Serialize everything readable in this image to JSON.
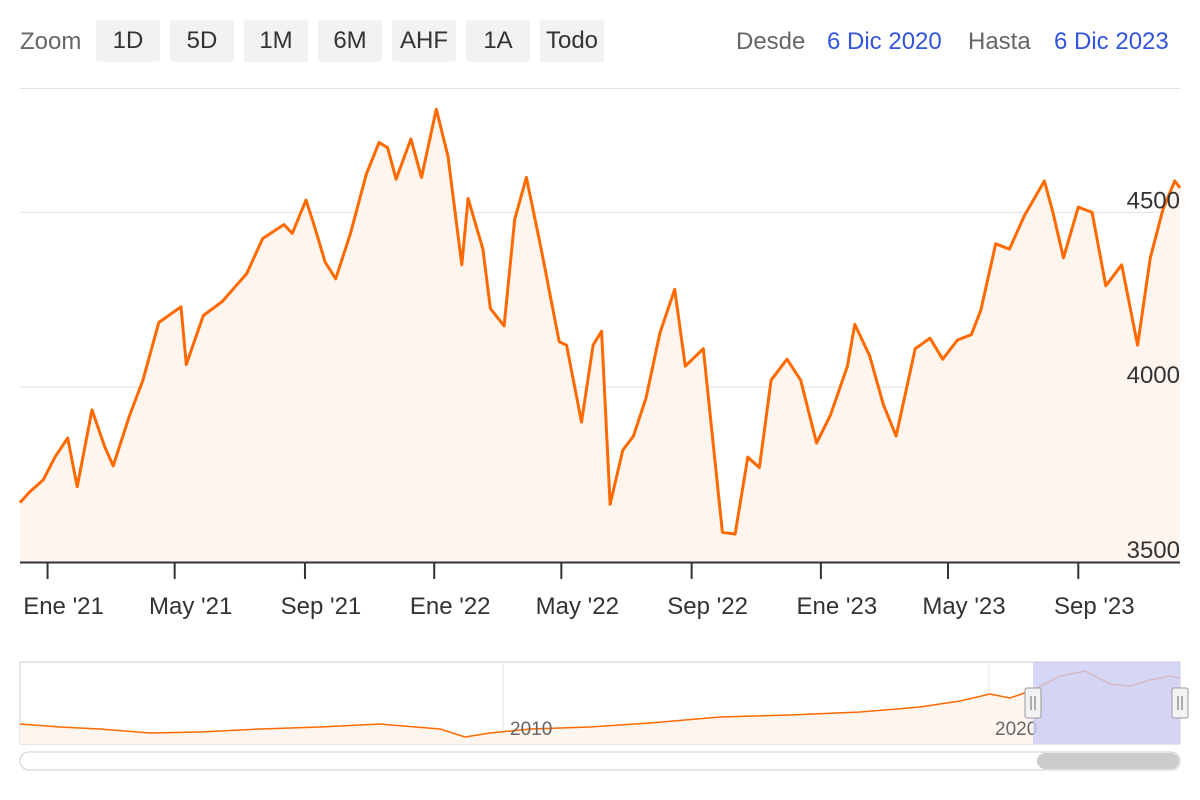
{
  "toolbar": {
    "zoom_label": "Zoom",
    "buttons": [
      "1D",
      "5D",
      "1M",
      "6M",
      "AHF",
      "1A",
      "Todo"
    ],
    "from_label": "Desde",
    "from_value": "6 Dic 2020",
    "to_label": "Hasta",
    "to_value": "6 Dic 2023"
  },
  "colors": {
    "series": "#ff6a00",
    "area_fill": "#fff5ef",
    "grid": "#e0e0e0",
    "date_link": "#3355dd",
    "navigator_mask": "#ccccf5"
  },
  "chart_data": {
    "type": "line",
    "title": "",
    "xlabel": "",
    "ylabel": "",
    "x_range": [
      "2020-12-06",
      "2023-12-06"
    ],
    "ylim": [
      3500,
      4850
    ],
    "y_ticks": [
      3500,
      4000,
      4500
    ],
    "y_tick_labels": [
      "3500",
      "4000",
      "4500"
    ],
    "x_tick_labels": [
      "Ene '21",
      "May '21",
      "Sep '21",
      "Ene '22",
      "May '22",
      "Sep '22",
      "Ene '23",
      "May '23",
      "Sep '23"
    ],
    "x_tick_dates": [
      "2021-01-01",
      "2021-05-01",
      "2021-09-01",
      "2022-01-01",
      "2022-05-01",
      "2022-09-01",
      "2023-01-01",
      "2023-05-01",
      "2023-09-01"
    ],
    "grid": true,
    "legend": "none",
    "series": [
      {
        "x": [
          "2020-12-06",
          "2020-12-15",
          "2020-12-28",
          "2021-01-08",
          "2021-01-20",
          "2021-01-29",
          "2021-02-12",
          "2021-02-24",
          "2021-03-04",
          "2021-03-19",
          "2021-04-01",
          "2021-04-16",
          "2021-05-07",
          "2021-05-12",
          "2021-05-28",
          "2021-06-15",
          "2021-06-25",
          "2021-07-08",
          "2021-07-23",
          "2021-08-12",
          "2021-08-20",
          "2021-09-02",
          "2021-09-10",
          "2021-09-20",
          "2021-09-30",
          "2021-10-14",
          "2021-10-29",
          "2021-11-10",
          "2021-11-18",
          "2021-11-26",
          "2021-12-10",
          "2021-12-20",
          "2022-01-03",
          "2022-01-14",
          "2022-01-27",
          "2022-02-02",
          "2022-02-16",
          "2022-02-23",
          "2022-03-08",
          "2022-03-18",
          "2022-03-29",
          "2022-04-12",
          "2022-04-29",
          "2022-05-06",
          "2022-05-20",
          "2022-05-31",
          "2022-06-08",
          "2022-06-16",
          "2022-06-28",
          "2022-07-08",
          "2022-07-20",
          "2022-08-02",
          "2022-08-16",
          "2022-08-26",
          "2022-09-12",
          "2022-09-30",
          "2022-10-12",
          "2022-10-24",
          "2022-11-04",
          "2022-11-15",
          "2022-11-30",
          "2022-12-13",
          "2022-12-28",
          "2023-01-10",
          "2023-01-26",
          "2023-02-02",
          "2023-02-16",
          "2023-03-01",
          "2023-03-13",
          "2023-03-31",
          "2023-04-14",
          "2023-04-26",
          "2023-05-10",
          "2023-05-23",
          "2023-06-01",
          "2023-06-15",
          "2023-06-28",
          "2023-07-12",
          "2023-07-31",
          "2023-08-08",
          "2023-08-18",
          "2023-09-01",
          "2023-09-14",
          "2023-09-27",
          "2023-10-12",
          "2023-10-27",
          "2023-11-08",
          "2023-11-20",
          "2023-12-01",
          "2023-12-06"
        ],
        "values": [
          3670,
          3700,
          3735,
          3800,
          3855,
          3715,
          3935,
          3830,
          3775,
          3915,
          4020,
          4185,
          4230,
          4065,
          4205,
          4245,
          4280,
          4325,
          4425,
          4465,
          4440,
          4535,
          4460,
          4358,
          4310,
          4440,
          4610,
          4700,
          4685,
          4595,
          4710,
          4600,
          4795,
          4660,
          4350,
          4540,
          4395,
          4225,
          4175,
          4480,
          4600,
          4395,
          4130,
          4120,
          3900,
          4120,
          4160,
          3665,
          3820,
          3860,
          3970,
          4155,
          4280,
          4060,
          4110,
          3585,
          3580,
          3800,
          3770,
          4020,
          4080,
          4020,
          3840,
          3920,
          4060,
          4180,
          4090,
          3950,
          3860,
          4110,
          4140,
          4080,
          4135,
          4150,
          4220,
          4410,
          4395,
          4490,
          4590,
          4500,
          4370,
          4515,
          4500,
          4290,
          4350,
          4120,
          4370,
          4510,
          4590,
          4570
        ]
      }
    ]
  },
  "navigator": {
    "labels": [
      "2010",
      "2020"
    ]
  }
}
